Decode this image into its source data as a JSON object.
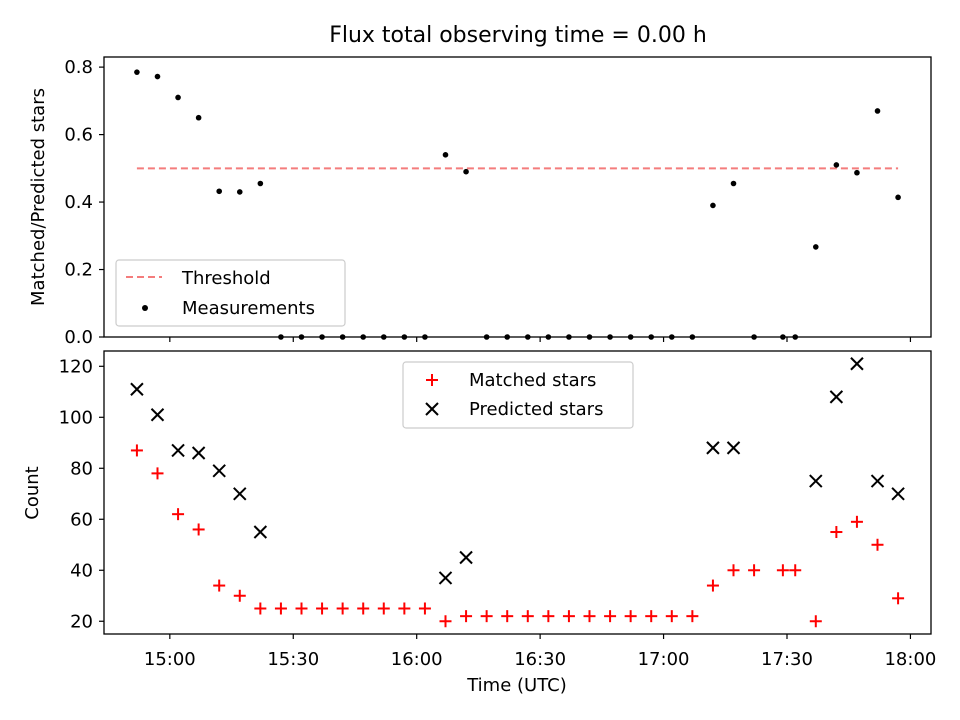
{
  "chart_data": [
    {
      "type": "scatter",
      "title": "Flux total observing time = 0.00 h",
      "xlabel": "",
      "ylabel": "Matched/Predicted stars",
      "ylim": [
        0,
        0.83
      ],
      "yticks": [
        "0.0",
        "0.2",
        "0.4",
        "0.6",
        "0.8"
      ],
      "xticks": [
        "15:00",
        "15:30",
        "16:00",
        "16:30",
        "17:00",
        "17:30",
        "18:00"
      ],
      "legend_position": "lower-left",
      "threshold": {
        "name": "Threshold",
        "value": 0.5,
        "x_range": [
          "14:52",
          "17:57"
        ],
        "color": "#f47c7c"
      },
      "series": [
        {
          "name": "Measurements",
          "color": "#000000",
          "x": [
            "14:52",
            "14:57",
            "15:02",
            "15:07",
            "15:12",
            "15:17",
            "15:22",
            "15:27",
            "15:32",
            "15:37",
            "15:42",
            "15:47",
            "15:52",
            "15:57",
            "16:02",
            "16:07",
            "16:12",
            "16:17",
            "16:22",
            "16:27",
            "16:32",
            "16:37",
            "16:42",
            "16:47",
            "16:52",
            "16:57",
            "17:02",
            "17:07",
            "17:12",
            "17:17",
            "17:22",
            "17:27",
            "17:32",
            "17:37",
            "17:42",
            "17:47",
            "17:52",
            "17:57"
          ],
          "y": [
            0.785,
            0.772,
            0.71,
            0.65,
            0.432,
            0.43,
            0.455,
            0,
            0,
            0,
            0,
            0,
            0,
            0,
            0,
            0.54,
            0.49,
            0,
            0,
            0,
            0,
            0,
            0,
            0,
            0,
            0,
            0,
            0,
            0.39,
            0.455,
            0,
            0,
            0,
            0.267,
            0.51,
            0.487,
            0.67,
            0.414
          ],
          "display_x": [
            null,
            null,
            null,
            null,
            null,
            null,
            null,
            null,
            null,
            null,
            null,
            null,
            null,
            null,
            null,
            null,
            null,
            null,
            null,
            null,
            null,
            null,
            null,
            null,
            null,
            null,
            null,
            null,
            null,
            null,
            null,
            "17:29",
            null,
            null,
            null,
            null,
            null,
            null
          ]
        }
      ]
    },
    {
      "type": "scatter",
      "title": "",
      "xlabel": "Time (UTC)",
      "ylabel": "Count",
      "ylim": [
        15,
        126
      ],
      "yticks": [
        "20",
        "40",
        "60",
        "80",
        "100",
        "120"
      ],
      "xticks": [
        "15:00",
        "15:30",
        "16:00",
        "16:30",
        "17:00",
        "17:30",
        "18:00"
      ],
      "legend_position": "upper-center",
      "series": [
        {
          "name": "Matched stars",
          "marker": "+",
          "color": "#ff0000",
          "x": [
            "14:52",
            "14:57",
            "15:02",
            "15:07",
            "15:12",
            "15:17",
            "15:22",
            "15:27",
            "15:32",
            "15:37",
            "15:42",
            "15:47",
            "15:52",
            "15:57",
            "16:02",
            "16:07",
            "16:12",
            "16:17",
            "16:22",
            "16:27",
            "16:32",
            "16:37",
            "16:42",
            "16:47",
            "16:52",
            "16:57",
            "17:02",
            "17:07",
            "17:12",
            "17:17",
            "17:22",
            "17:29",
            "17:32",
            "17:37",
            "17:42",
            "17:47",
            "17:52",
            "17:57"
          ],
          "y": [
            87,
            78,
            62,
            56,
            34,
            30,
            25,
            25,
            25,
            25,
            25,
            25,
            25,
            25,
            25,
            20,
            22,
            22,
            22,
            22,
            22,
            22,
            22,
            22,
            22,
            22,
            22,
            22,
            34,
            40,
            40,
            40,
            40,
            20,
            55,
            59,
            50,
            29
          ]
        },
        {
          "name": "Predicted stars",
          "marker": "x",
          "color": "#000000",
          "x": [
            "14:52",
            "14:57",
            "15:02",
            "15:07",
            "15:12",
            "15:17",
            "15:22",
            "16:07",
            "16:12",
            "17:12",
            "17:17",
            "17:37",
            "17:42",
            "17:47",
            "17:52",
            "17:57"
          ],
          "y": [
            111,
            101,
            87,
            86,
            79,
            70,
            55,
            37,
            45,
            88,
            88,
            75,
            108,
            121,
            75,
            70
          ]
        }
      ]
    }
  ]
}
